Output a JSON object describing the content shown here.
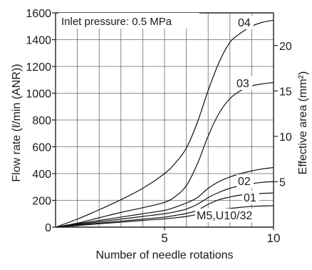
{
  "chart_data": {
    "type": "line",
    "xlabel": "Number of needle rotations",
    "ylabel": "Flow rate (ℓ/min (ANR))",
    "y2label": "Effective area (mm²)",
    "annotation": "Inlet pressure: 0.5 MPa",
    "xlim": [
      0,
      10
    ],
    "ylim": [
      0,
      1600
    ],
    "y2lim": [
      0,
      23.6
    ],
    "grid": true,
    "x_ticks": [
      {
        "value": 5,
        "label": "5"
      },
      {
        "value": 10,
        "label": "10"
      }
    ],
    "y_ticks": [
      {
        "value": 0,
        "label": "0"
      },
      {
        "value": 200,
        "label": "200"
      },
      {
        "value": 400,
        "label": "400"
      },
      {
        "value": 600,
        "label": "600"
      },
      {
        "value": 800,
        "label": "800"
      },
      {
        "value": 1000,
        "label": "1000"
      },
      {
        "value": 1200,
        "label": "1200"
      },
      {
        "value": 1400,
        "label": "1400"
      },
      {
        "value": 1600,
        "label": "1600"
      }
    ],
    "y2_ticks": [
      {
        "value": 5,
        "label": "5"
      },
      {
        "value": 10,
        "label": "10"
      },
      {
        "value": 15,
        "label": "15"
      },
      {
        "value": 20,
        "label": "20"
      }
    ],
    "series": [
      {
        "name": "04",
        "x": [
          0,
          1,
          2,
          3,
          4,
          5,
          5.5,
          6,
          6.5,
          7,
          7.5,
          8,
          8.5,
          9,
          9.5,
          10
        ],
        "y": [
          0,
          60,
          130,
          205,
          290,
          400,
          480,
          590,
          780,
          1020,
          1230,
          1380,
          1450,
          1500,
          1530,
          1545
        ]
      },
      {
        "name": "03",
        "x": [
          0,
          1,
          2,
          3,
          4,
          5,
          5.5,
          6,
          6.5,
          7,
          7.5,
          8,
          8.5,
          9,
          9.5,
          10
        ],
        "y": [
          0,
          30,
          70,
          110,
          145,
          185,
          230,
          310,
          470,
          680,
          850,
          960,
          1020,
          1055,
          1070,
          1080
        ]
      },
      {
        "name": "02",
        "x": [
          0,
          1,
          2,
          3,
          4,
          5,
          5.5,
          6,
          6.5,
          7,
          7.5,
          8,
          8.5,
          9,
          9.5,
          10
        ],
        "y": [
          0,
          25,
          50,
          75,
          100,
          125,
          150,
          180,
          220,
          290,
          340,
          375,
          400,
          420,
          435,
          445
        ]
      },
      {
        "name": "01",
        "x": [
          0,
          1,
          2,
          3,
          4,
          5,
          5.5,
          6,
          6.5,
          7,
          7.5,
          8,
          8.5,
          9,
          9.5,
          10
        ],
        "y": [
          0,
          20,
          40,
          60,
          80,
          100,
          115,
          135,
          170,
          220,
          260,
          290,
          310,
          325,
          335,
          340
        ]
      },
      {
        "name": "",
        "x": [
          0,
          1,
          2,
          3,
          4,
          5,
          5.5,
          6,
          6.5,
          7,
          7.5,
          8,
          8.5,
          9,
          9.5,
          10
        ],
        "y": [
          0,
          15,
          30,
          45,
          60,
          75,
          88,
          102,
          125,
          170,
          205,
          225,
          240,
          248,
          252,
          255
        ]
      },
      {
        "name": "M5,U10/32",
        "x": [
          0,
          1,
          2,
          3,
          4,
          5,
          5.5,
          6,
          6.5,
          7,
          7.5,
          8,
          8.5,
          9,
          9.5,
          10
        ],
        "y": [
          0,
          12,
          25,
          37,
          50,
          62,
          70,
          80,
          95,
          115,
          130,
          140,
          148,
          155,
          158,
          160
        ]
      }
    ]
  }
}
